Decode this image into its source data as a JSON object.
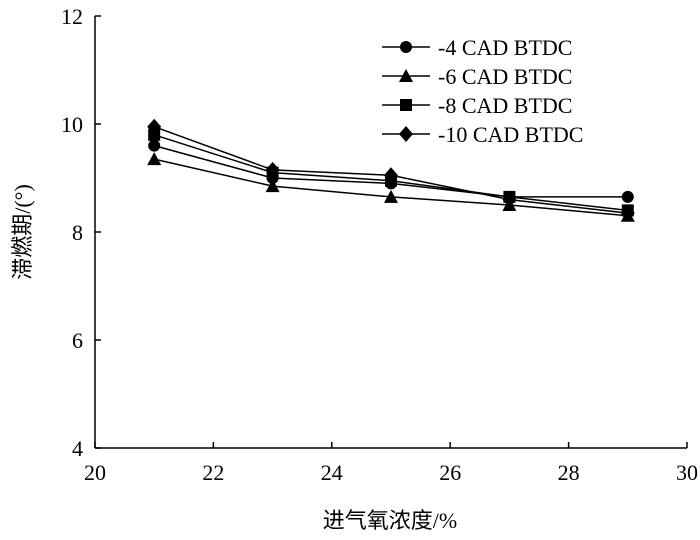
{
  "chart_data": {
    "type": "line",
    "title": "",
    "xlabel": "进气氧浓度/%",
    "ylabel": "滞燃期/(°)",
    "xlim": [
      20,
      30
    ],
    "ylim": [
      4,
      12
    ],
    "xticks": [
      20,
      22,
      24,
      26,
      28,
      30
    ],
    "yticks": [
      4,
      6,
      8,
      10,
      12
    ],
    "x": [
      21,
      23,
      25,
      27,
      29
    ],
    "legend_position": "top-right",
    "series": [
      {
        "name": "-4 CAD BTDC",
        "marker": "circle",
        "values": [
          9.6,
          9.0,
          8.9,
          8.65,
          8.65
        ]
      },
      {
        "name": "-6 CAD BTDC",
        "marker": "triangle",
        "values": [
          9.35,
          8.85,
          8.65,
          8.5,
          8.3
        ]
      },
      {
        "name": "-8 CAD BTDC",
        "marker": "square",
        "values": [
          9.8,
          9.1,
          8.95,
          8.65,
          8.4
        ]
      },
      {
        "name": "-10 CAD BTDC",
        "marker": "diamond",
        "values": [
          9.95,
          9.15,
          9.05,
          8.6,
          8.35
        ]
      }
    ]
  }
}
